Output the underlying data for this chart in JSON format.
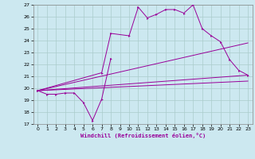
{
  "xlabel": "Windchill (Refroidissement éolien,°C)",
  "background_color": "#cce8f0",
  "grid_color": "#aacccc",
  "line_color": "#990099",
  "xlim": [
    -0.5,
    23.5
  ],
  "ylim": [
    17,
    27
  ],
  "yticks": [
    17,
    18,
    19,
    20,
    21,
    22,
    23,
    24,
    25,
    26,
    27
  ],
  "xticks": [
    0,
    1,
    2,
    3,
    4,
    5,
    6,
    7,
    8,
    9,
    10,
    11,
    12,
    13,
    14,
    15,
    16,
    17,
    18,
    19,
    20,
    21,
    22,
    23
  ],
  "line1_x": [
    0,
    1,
    2,
    3,
    4,
    5,
    6,
    7,
    8
  ],
  "line1_y": [
    19.8,
    19.5,
    19.5,
    19.6,
    19.6,
    18.8,
    17.3,
    19.1,
    22.5
  ],
  "line2_x": [
    0,
    7,
    8,
    10,
    11,
    12,
    13,
    14,
    15,
    16,
    17,
    18,
    19,
    20,
    21,
    22,
    23
  ],
  "line2_y": [
    19.8,
    21.3,
    24.6,
    24.4,
    26.8,
    25.9,
    26.2,
    26.6,
    26.6,
    26.3,
    27.0,
    25.0,
    24.4,
    23.9,
    22.4,
    21.5,
    21.1
  ],
  "straight_lines": [
    {
      "x": [
        0,
        23
      ],
      "y": [
        19.8,
        21.1
      ]
    },
    {
      "x": [
        0,
        23
      ],
      "y": [
        19.8,
        23.8
      ]
    },
    {
      "x": [
        0,
        23
      ],
      "y": [
        19.8,
        20.6
      ]
    }
  ]
}
